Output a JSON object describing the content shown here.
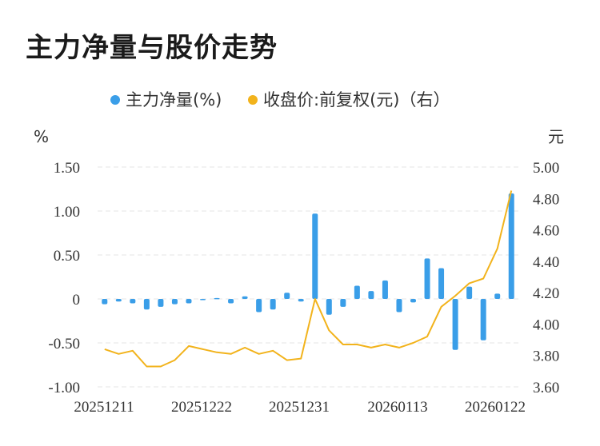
{
  "title": "主力净量与股价走势",
  "chart_data": {
    "type": "bar+line",
    "legend": [
      {
        "label": "主力净量(%)",
        "color": "#3a9ee8"
      },
      {
        "label": "收盘价:前复权(元)（右）",
        "color": "#f2b31c"
      }
    ],
    "left_axis": {
      "unit": "%",
      "min": -1.0,
      "max": 1.5,
      "ticks": [
        "-1.00",
        "-0.50",
        "0",
        "0.50",
        "1.00",
        "1.50"
      ]
    },
    "right_axis": {
      "unit": "元",
      "min": 3.6,
      "max": 5.0,
      "ticks": [
        "3.60",
        "3.80",
        "4.00",
        "4.20",
        "4.40",
        "4.60",
        "4.80",
        "5.00"
      ]
    },
    "x_tick_labels": [
      "20251211",
      "20251222",
      "20251231",
      "20260113",
      "20260122"
    ],
    "series": [
      {
        "name": "主力净量(%)",
        "type": "bar",
        "values": [
          -0.06,
          -0.03,
          -0.05,
          -0.12,
          -0.09,
          -0.06,
          -0.05,
          -0.01,
          0.01,
          -0.05,
          0.03,
          -0.15,
          -0.12,
          0.07,
          -0.03,
          0.97,
          -0.18,
          -0.09,
          0.15,
          0.09,
          0.21,
          -0.15,
          -0.04,
          0.46,
          0.35,
          -0.58,
          0.14,
          -0.47,
          0.06,
          1.2
        ]
      },
      {
        "name": "收盘价:前复权(元)（右）",
        "type": "line",
        "values": [
          3.84,
          3.81,
          3.83,
          3.73,
          3.73,
          3.77,
          3.86,
          3.84,
          3.82,
          3.81,
          3.85,
          3.81,
          3.83,
          3.77,
          3.78,
          4.16,
          3.96,
          3.87,
          3.87,
          3.85,
          3.87,
          3.85,
          3.88,
          3.92,
          4.11,
          4.18,
          4.26,
          4.29,
          4.48,
          4.85
        ]
      }
    ]
  }
}
